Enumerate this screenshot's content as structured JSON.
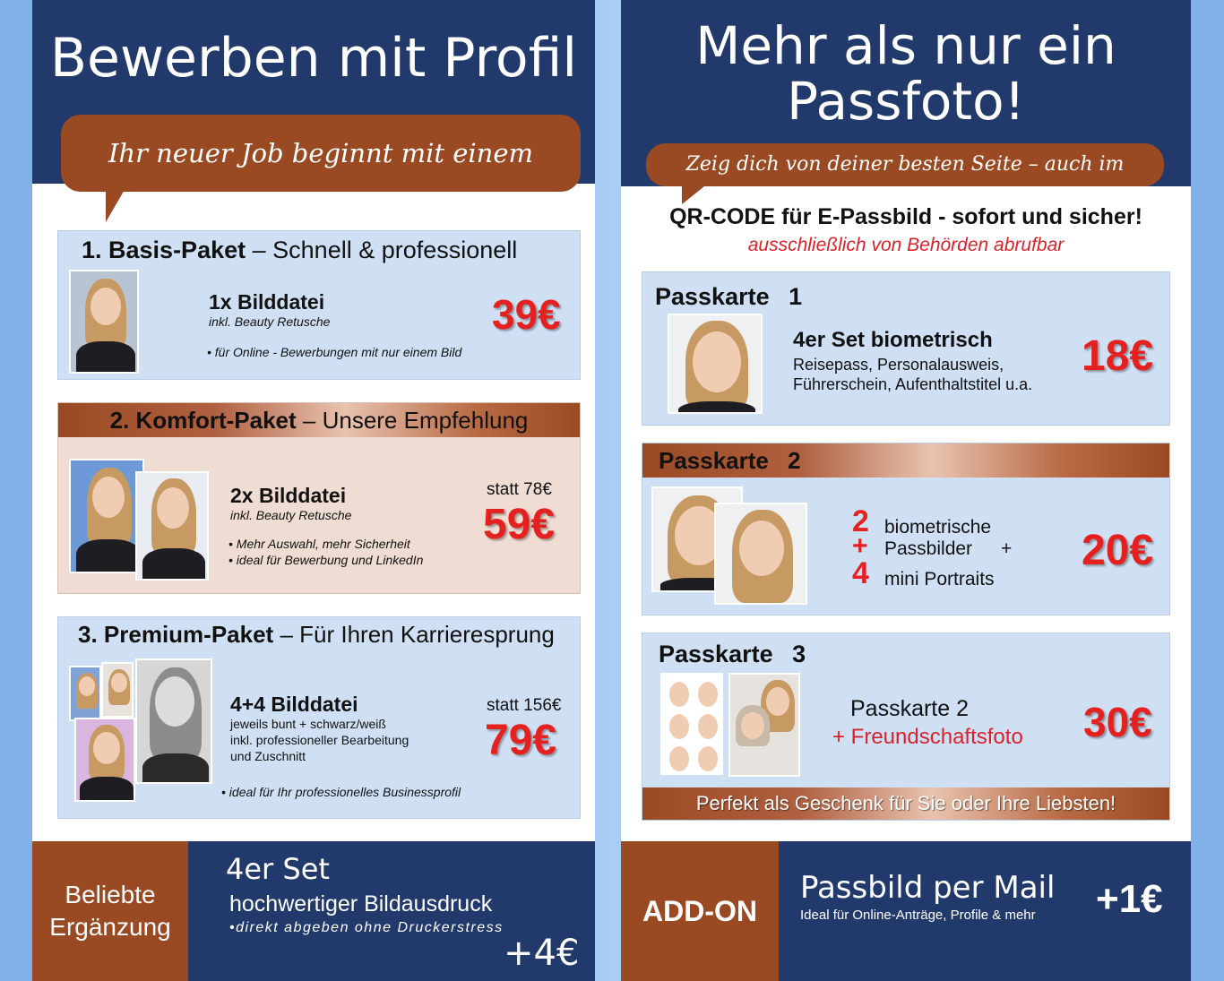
{
  "left": {
    "title": "Bewerben mit Profil",
    "bubble": "Ihr neuer Job beginnt mit einem starken Bild",
    "packages": [
      {
        "name": "1. Basis-Paket",
        "tagline": "Schnell & professionell",
        "item": "1x Bilddatei",
        "sub": "inkl. Beauty Retusche",
        "note": "• für Online - Bewerbungen mit nur einem Bild",
        "price": "39€"
      },
      {
        "name": "2. Komfort-Paket",
        "tagline": "Unsere Empfehlung",
        "item": "2x Bilddatei",
        "sub": "inkl. Beauty Retusche",
        "note1": "• Mehr Auswahl, mehr Sicherheit",
        "note2": "• ideal für Bewerbung und LinkedIn",
        "statt": "statt 78€",
        "price": "59€"
      },
      {
        "name": "3. Premium-Paket",
        "tagline": "Für Ihren Karrieresprung",
        "item": "4+4 Bilddatei",
        "sub1": "jeweils bunt + schwarz/weiß",
        "sub2": "inkl. professioneller Bearbeitung",
        "sub3": "und Zuschnitt",
        "note": "• ideal für Ihr professionelles Businessprofil",
        "statt": "statt 156€",
        "price": "79€"
      }
    ],
    "bottom": {
      "tag_line1": "Beliebte",
      "tag_line2": "Ergänzung",
      "line1": "4er Set",
      "line2": "hochwertiger Bildausdruck",
      "line3": "•direkt abgeben ohne Druckerstress",
      "price": "+4€"
    }
  },
  "right": {
    "title_line1": "Mehr als nur ein",
    "title_line2": "Passfoto!",
    "bubble": "Zeig dich von deiner besten Seite – auch im Ausweis",
    "qr_title": "QR-CODE für E-Passbild - sofort und sicher!",
    "qr_sub": "ausschließlich von Behörden abrufbar",
    "cards": [
      {
        "name": "Passkarte",
        "num": "1",
        "item": "4er Set biometrisch",
        "sub1": "Reisepass, Personalausweis,",
        "sub2": "Führerschein, Aufenthaltstitel u.a.",
        "price": "18€"
      },
      {
        "name": "Passkarte",
        "num": "2",
        "n1": "2",
        "t1": "biometrische",
        "plus": "+",
        "t2": "Passbilder",
        "t2plus": "+",
        "n2": "4",
        "t3": "mini Portraits",
        "price": "20€"
      },
      {
        "name": "Passkarte",
        "num": "3",
        "item": "Passkarte 2",
        "item2": "+ Freundschaftsfoto",
        "price": "30€",
        "banner": "Perfekt als Geschenk für Sie oder Ihre Liebsten!"
      }
    ],
    "bottom": {
      "tag": "ADD-ON",
      "line1": "Passbild per Mail",
      "line2": "Ideal für Online-Anträge,  Profile & mehr",
      "price": "+1€"
    }
  },
  "colors": {
    "navy": "#223a6b",
    "rust": "#9a4a22",
    "card_blue": "#cfe0f4",
    "price_red": "#e5211f"
  }
}
